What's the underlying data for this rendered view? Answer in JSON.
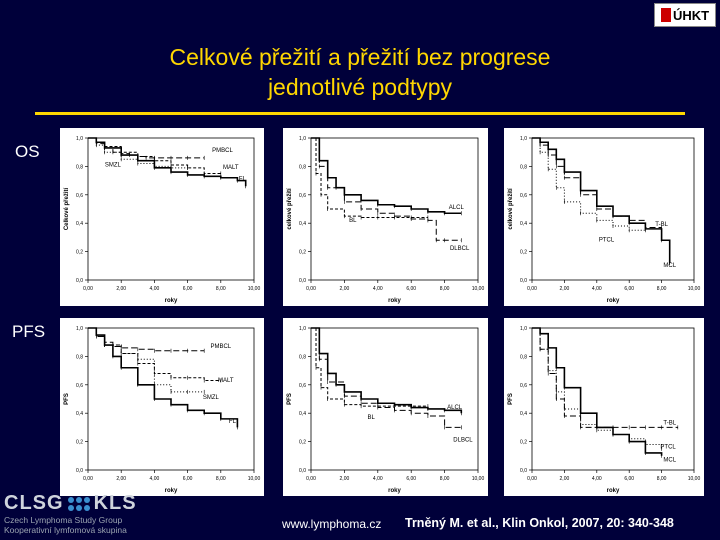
{
  "header": {
    "logo_text": "ÚHKT",
    "title_line1": "Celkové přežití a přežití bez progrese",
    "title_line2": "jednotlivé podtypy"
  },
  "rows": {
    "os_label": "OS",
    "pfs_label": "PFS"
  },
  "footer": {
    "url": "www.lymphoma.cz",
    "citation": "Trněný M. et al., Klin Onkol, 2007, 20: 340-348",
    "group_name": "CLSG",
    "group_name2": "KLS",
    "group_sub1": "Czech Lymphoma Study Group",
    "group_sub2": "Kooperativní lymfomová skupina"
  },
  "colors": {
    "background": "#00003a",
    "title": "#ffd700",
    "plot_line": "#000000",
    "panel_bg": "#ffffff"
  },
  "chart_data": [
    {
      "type": "line",
      "panel": "os-1",
      "xlabel": "roky",
      "ylabel": "Celkové přežití",
      "xlim": [
        0,
        10
      ],
      "ylim": [
        0,
        1
      ],
      "xticks": [
        "0,00",
        "2,00",
        "4,00",
        "6,00",
        "8,00",
        "10,00"
      ],
      "yticks": [
        "0,0",
        "0,2",
        "0,4",
        "0,6",
        "0,8",
        "1,0"
      ],
      "series": [
        {
          "name": "PMBCL",
          "x": [
            0,
            0.5,
            1,
            1.5,
            2,
            2.5,
            3,
            3.5,
            4,
            5,
            6,
            7
          ],
          "y": [
            1,
            0.96,
            0.93,
            0.9,
            0.89,
            0.88,
            0.87,
            0.86,
            0.86,
            0.86,
            0.86,
            0.86
          ],
          "dash": "6,3"
        },
        {
          "name": "MALT",
          "x": [
            0,
            0.5,
            1,
            2,
            3,
            4,
            5,
            6,
            7,
            8
          ],
          "y": [
            1,
            0.97,
            0.94,
            0.9,
            0.87,
            0.84,
            0.81,
            0.79,
            0.75,
            0.75
          ],
          "dash": "3,2"
        },
        {
          "name": "SMZL",
          "x": [
            0,
            0.5,
            1,
            2,
            3,
            4,
            5,
            6
          ],
          "y": [
            1,
            0.95,
            0.9,
            0.85,
            0.82,
            0.8,
            0.79,
            0.79
          ],
          "dash": "1,2"
        },
        {
          "name": "FL",
          "x": [
            0,
            0.5,
            1,
            2,
            3,
            4,
            5,
            6,
            7,
            8,
            9,
            9.5
          ],
          "y": [
            1,
            0.97,
            0.93,
            0.88,
            0.84,
            0.79,
            0.76,
            0.74,
            0.73,
            0.72,
            0.7,
            0.66
          ],
          "dash": ""
        }
      ],
      "labels": [
        {
          "text": "PMBCL",
          "x": 8.1,
          "y": 0.9
        },
        {
          "text": "MALT",
          "x": 8.6,
          "y": 0.78
        },
        {
          "text": "SMZL",
          "x": 1.5,
          "y": 0.8
        },
        {
          "text": "FL",
          "x": 9.3,
          "y": 0.7
        }
      ]
    },
    {
      "type": "line",
      "panel": "os-2",
      "xlabel": "roky",
      "ylabel": "celkové přežití",
      "xlim": [
        0,
        10
      ],
      "ylim": [
        0,
        1
      ],
      "xticks": [
        "0,00",
        "2,00",
        "4,00",
        "6,00",
        "8,00",
        "10,00"
      ],
      "yticks": [
        "0,0",
        "0,2",
        "0,4",
        "0,6",
        "0,8",
        "1,0"
      ],
      "series": [
        {
          "name": "ALCL",
          "x": [
            0,
            0.5,
            1,
            1.5,
            2,
            3,
            4,
            5,
            6,
            7,
            8,
            9
          ],
          "y": [
            1,
            0.84,
            0.72,
            0.65,
            0.6,
            0.56,
            0.53,
            0.52,
            0.5,
            0.48,
            0.47,
            0.47
          ],
          "dash": ""
        },
        {
          "name": "BL",
          "x": [
            0,
            0.3,
            0.6,
            1,
            2,
            3,
            4,
            5,
            6,
            7
          ],
          "y": [
            1,
            0.75,
            0.6,
            0.5,
            0.45,
            0.44,
            0.44,
            0.44,
            0.44,
            0.44
          ],
          "dash": "3,2"
        },
        {
          "name": "DLBCL",
          "x": [
            0,
            0.5,
            1,
            2,
            3,
            4,
            5,
            6,
            7,
            7.5,
            8,
            9
          ],
          "y": [
            1,
            0.8,
            0.65,
            0.55,
            0.5,
            0.47,
            0.45,
            0.43,
            0.42,
            0.28,
            0.28,
            0.28
          ],
          "dash": "6,3"
        }
      ],
      "labels": [
        {
          "text": "ALCL",
          "x": 8.7,
          "y": 0.5
        },
        {
          "text": "BL",
          "x": 2.5,
          "y": 0.41
        },
        {
          "text": "DLBCL",
          "x": 8.9,
          "y": 0.21
        }
      ]
    },
    {
      "type": "line",
      "panel": "os-3",
      "xlabel": "roky",
      "ylabel": "celkové přežití",
      "xlim": [
        0,
        10
      ],
      "ylim": [
        0,
        1
      ],
      "xticks": [
        "0,00",
        "2,00",
        "4,00",
        "6,00",
        "8,00",
        "10,00"
      ],
      "yticks": [
        "0,0",
        "0,2",
        "0,4",
        "0,6",
        "0,8",
        "1,0"
      ],
      "series": [
        {
          "name": "T-BL",
          "x": [
            0,
            0.5,
            1,
            1.5,
            2,
            3,
            4,
            5,
            6,
            7,
            8
          ],
          "y": [
            1,
            0.95,
            0.88,
            0.8,
            0.72,
            0.6,
            0.5,
            0.45,
            0.42,
            0.37,
            0.37
          ],
          "dash": "6,3"
        },
        {
          "name": "PTCL",
          "x": [
            0,
            0.5,
            1,
            1.5,
            2,
            3,
            4,
            5,
            6,
            7
          ],
          "y": [
            1,
            0.9,
            0.78,
            0.65,
            0.55,
            0.47,
            0.42,
            0.38,
            0.35,
            0.35
          ],
          "dash": "1,2"
        },
        {
          "name": "MCL",
          "x": [
            0,
            0.5,
            1,
            1.5,
            2,
            3,
            4,
            5,
            6,
            7,
            8,
            8.5
          ],
          "y": [
            1,
            0.97,
            0.92,
            0.85,
            0.76,
            0.63,
            0.52,
            0.45,
            0.4,
            0.36,
            0.28,
            0.12
          ],
          "dash": ""
        }
      ],
      "labels": [
        {
          "text": "T-BL",
          "x": 8.0,
          "y": 0.38
        },
        {
          "text": "PTCL",
          "x": 4.6,
          "y": 0.27
        },
        {
          "text": "MCL",
          "x": 8.5,
          "y": 0.09
        }
      ]
    },
    {
      "type": "line",
      "panel": "pfs-1",
      "xlabel": "roky",
      "ylabel": "PFS",
      "xlim": [
        0,
        10
      ],
      "ylim": [
        0,
        1
      ],
      "xticks": [
        "0,00",
        "2,00",
        "4,00",
        "6,00",
        "8,00",
        "10,00"
      ],
      "yticks": [
        "0,0",
        "0,2",
        "0,4",
        "0,6",
        "0,8",
        "1,0"
      ],
      "series": [
        {
          "name": "PMBCL",
          "x": [
            0,
            0.5,
            1,
            1.5,
            2,
            3,
            4,
            5,
            6,
            7
          ],
          "y": [
            1,
            0.94,
            0.9,
            0.87,
            0.86,
            0.85,
            0.84,
            0.84,
            0.84,
            0.84
          ],
          "dash": "6,3"
        },
        {
          "name": "MALT",
          "x": [
            0,
            0.5,
            1,
            2,
            3,
            4,
            5,
            6,
            7,
            8
          ],
          "y": [
            1,
            0.95,
            0.88,
            0.82,
            0.75,
            0.68,
            0.65,
            0.65,
            0.63,
            0.63
          ],
          "dash": "3,2"
        },
        {
          "name": "SMZL",
          "x": [
            0,
            0.5,
            1,
            2,
            3,
            4,
            5,
            6,
            7
          ],
          "y": [
            1,
            0.94,
            0.88,
            0.82,
            0.78,
            0.6,
            0.55,
            0.55,
            0.55
          ],
          "dash": "1,2"
        },
        {
          "name": "FL",
          "x": [
            0,
            0.5,
            1,
            1.5,
            2,
            3,
            4,
            5,
            6,
            7,
            8,
            9
          ],
          "y": [
            1,
            0.95,
            0.88,
            0.8,
            0.72,
            0.6,
            0.5,
            0.46,
            0.42,
            0.4,
            0.36,
            0.3
          ],
          "dash": ""
        }
      ],
      "labels": [
        {
          "text": "PMBCL",
          "x": 8.0,
          "y": 0.86
        },
        {
          "text": "MALT",
          "x": 8.3,
          "y": 0.62
        },
        {
          "text": "SMZL",
          "x": 7.4,
          "y": 0.5
        },
        {
          "text": "FL",
          "x": 8.7,
          "y": 0.33
        }
      ]
    },
    {
      "type": "line",
      "panel": "pfs-2",
      "xlabel": "roky",
      "ylabel": "PFS",
      "xlim": [
        0,
        10
      ],
      "ylim": [
        0,
        1
      ],
      "xticks": [
        "0,00",
        "2,00",
        "4,00",
        "6,00",
        "8,00",
        "10,00"
      ],
      "yticks": [
        "0,0",
        "0,2",
        "0,4",
        "0,6",
        "0,8",
        "1,0"
      ],
      "series": [
        {
          "name": "ALCL",
          "x": [
            0,
            0.5,
            1,
            1.5,
            2,
            3,
            4,
            5,
            6,
            7,
            8,
            9
          ],
          "y": [
            1,
            0.82,
            0.68,
            0.6,
            0.55,
            0.5,
            0.47,
            0.46,
            0.44,
            0.43,
            0.42,
            0.4
          ],
          "dash": ""
        },
        {
          "name": "BL",
          "x": [
            0,
            0.3,
            0.6,
            1,
            2,
            3,
            4,
            5,
            6,
            7
          ],
          "y": [
            1,
            0.72,
            0.58,
            0.5,
            0.46,
            0.45,
            0.45,
            0.45,
            0.45,
            0.45
          ],
          "dash": "3,2"
        },
        {
          "name": "DLBCL",
          "x": [
            0,
            0.5,
            1,
            2,
            3,
            4,
            5,
            6,
            7,
            8,
            9
          ],
          "y": [
            1,
            0.78,
            0.62,
            0.52,
            0.47,
            0.44,
            0.42,
            0.4,
            0.38,
            0.3,
            0.3
          ],
          "dash": "6,3"
        }
      ],
      "labels": [
        {
          "text": "ALCL",
          "x": 8.6,
          "y": 0.43
        },
        {
          "text": "BL",
          "x": 3.6,
          "y": 0.36
        },
        {
          "text": "DLBCL",
          "x": 9.1,
          "y": 0.2
        }
      ]
    },
    {
      "type": "line",
      "panel": "pfs-3",
      "xlabel": "roky",
      "ylabel": "PFS",
      "xlim": [
        0,
        10
      ],
      "ylim": [
        0,
        1
      ],
      "xticks": [
        "0,00",
        "2,00",
        "4,00",
        "6,00",
        "8,00",
        "10,00"
      ],
      "yticks": [
        "0,0",
        "0,2",
        "0,4",
        "0,6",
        "0,8",
        "1,0"
      ],
      "series": [
        {
          "name": "T-BL",
          "x": [
            0,
            0.5,
            1,
            1.5,
            2,
            3,
            4,
            5,
            6,
            7,
            8,
            9
          ],
          "y": [
            1,
            0.85,
            0.68,
            0.5,
            0.38,
            0.3,
            0.3,
            0.3,
            0.3,
            0.3,
            0.3,
            0.3
          ],
          "dash": "6,3"
        },
        {
          "name": "PTCL",
          "x": [
            0,
            0.5,
            1,
            1.5,
            2,
            3,
            4,
            5,
            6,
            7,
            8
          ],
          "y": [
            1,
            0.85,
            0.7,
            0.55,
            0.43,
            0.32,
            0.28,
            0.25,
            0.22,
            0.18,
            0.15
          ],
          "dash": "1,2"
        },
        {
          "name": "MCL",
          "x": [
            0,
            0.5,
            1,
            1.5,
            2,
            3,
            4,
            5,
            6,
            7,
            8
          ],
          "y": [
            1,
            0.96,
            0.86,
            0.72,
            0.58,
            0.4,
            0.3,
            0.25,
            0.2,
            0.12,
            0.1
          ],
          "dash": ""
        }
      ],
      "labels": [
        {
          "text": "T-BL",
          "x": 8.5,
          "y": 0.32
        },
        {
          "text": "PTCL",
          "x": 8.4,
          "y": 0.15
        },
        {
          "text": "MCL",
          "x": 8.5,
          "y": 0.06
        }
      ]
    }
  ]
}
